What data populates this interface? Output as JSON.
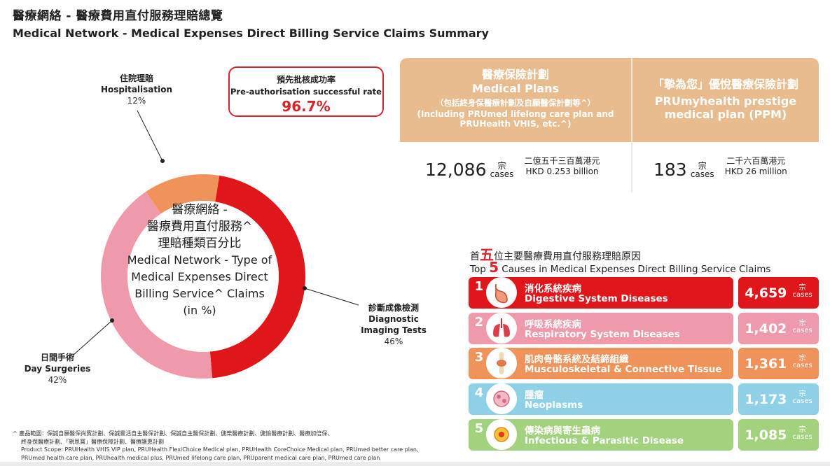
{
  "title": {
    "zh": "醫療網絡 - 醫療費用直付服務理賠總覽",
    "en": "Medical Network - Medical Expenses Direct Billing Service Claims Summary"
  },
  "donut": {
    "center_zh_1": "醫療網絡 -",
    "center_zh_2": "醫療費用直付服務^",
    "center_zh_3": "理賠種類百分比",
    "center_en_1": "Medical Network - Type of",
    "center_en_2": "Medical Expenses Direct",
    "center_en_3": "Billing Service^ Claims",
    "center_en_4": "(in %)",
    "labels": [
      {
        "zh": "住院理賠",
        "en": "Hospitalisation",
        "pct": "12%"
      },
      {
        "zh": "診斷成像檢測",
        "en1": "Diagnostic",
        "en2": "Imaging Tests",
        "pct": "46%"
      },
      {
        "zh": "日間手術",
        "en": "Day Surgeries",
        "pct": "42%"
      }
    ]
  },
  "chart_data": {
    "type": "pie",
    "title": "醫療網絡 - 醫療費用直付服務^ 理賠種類百分比 / Medical Network - Type of Medical Expenses Direct Billing Service^ Claims (in %)",
    "categories": [
      "Hospitalisation",
      "Diagnostic Imaging Tests",
      "Day Surgeries"
    ],
    "values": [
      12,
      46,
      42
    ],
    "colors": [
      "#f0935a",
      "#e0161b",
      "#ee9aaa"
    ]
  },
  "rate": {
    "zh": "預先批核成功率",
    "en": "Pre-authorisation successful rate",
    "value": "96.7%"
  },
  "plans": {
    "a": {
      "zh": "醫療保險計劃",
      "en": "Medical Plans",
      "sub_zh": "（包括終身保醫療計劃及自願醫保計劃等^）",
      "sub_en_1": "(Including PRUmed lifelong care plan and",
      "sub_en_2": "PRUHealth VHIS, etc.^)",
      "cases": "12,086",
      "unit_zh": "宗",
      "unit_en": "cases",
      "amount_zh": "二億五千三百萬港元",
      "amount_en": "HKD 0.253 billion"
    },
    "b": {
      "zh": "「摯為您」優悅醫療保險計劃",
      "en1": "PRUmyhealth prestige",
      "en2": "medical plan (PPM)",
      "cases": "183",
      "unit_zh": "宗",
      "unit_en": "cases",
      "amount_zh": "二千六百萬港元",
      "amount_en": "HKD 26 million"
    }
  },
  "top5": {
    "title_zh_pre": "首",
    "title_zh_num": "五",
    "title_zh_post": "位主要醫療費用直付服務理賠原因",
    "title_en_pre": "Top ",
    "title_en_num": "5",
    "title_en_post": " Causes in Medical Expenses Direct Billing Service Claims",
    "causes": [
      {
        "rank": "1",
        "zh": "消化系統疾病",
        "en": "Digestive System Diseases",
        "count": "4,659",
        "unit_zh": "宗",
        "unit_en": "cases",
        "color": "#e0161b",
        "icon": "stomach-icon"
      },
      {
        "rank": "2",
        "zh": "呼吸系統疾病",
        "en": "Respiratory System Diseases",
        "count": "1,402",
        "unit_zh": "宗",
        "unit_en": "cases",
        "color": "#ee9aaa",
        "icon": "lungs-icon"
      },
      {
        "rank": "3",
        "zh": "肌肉骨骼系統及結締組織",
        "en": "Musculoskeletal & Connective Tissue",
        "count": "1,361",
        "unit_zh": "宗",
        "unit_en": "cases",
        "color": "#f0935a",
        "icon": "joint-icon"
      },
      {
        "rank": "4",
        "zh": "腫瘤",
        "en": "Neoplasms",
        "count": "1,173",
        "unit_zh": "宗",
        "unit_en": "cases",
        "color": "#8ed0e6",
        "icon": "cell-icon"
      },
      {
        "rank": "5",
        "zh": "傳染病與寄生蟲病",
        "en": "Infectious & Parasitic Disease",
        "count": "1,085",
        "unit_zh": "宗",
        "unit_en": "cases",
        "color": "#a2d27e",
        "icon": "virus-icon"
      }
    ]
  },
  "footnote": {
    "l1": "^  產品範圍：保誠自願醫保尚賓計劃、保誠靈活自主醫保計劃、保誠自主醫保計劃、健樂醫療計劃、健愉醫療計劃、醫療加倍保、",
    "l2": "終身保醫療計劃、「親恩寶」醫療保障計劃、醫療護惠計劃",
    "l3": "Product Scope: PRUHealth VHIS VIP plan, PRUHealth FlexiChoice Medical plan, PRUHealth CoreChoice Medical plan, PRUmed better care plan,",
    "l4": "PRUmed health care plan, PRUhealth medical plus, PRUmed lifelong care plan, PRUparent medical care plan, PRUmed care plan"
  }
}
